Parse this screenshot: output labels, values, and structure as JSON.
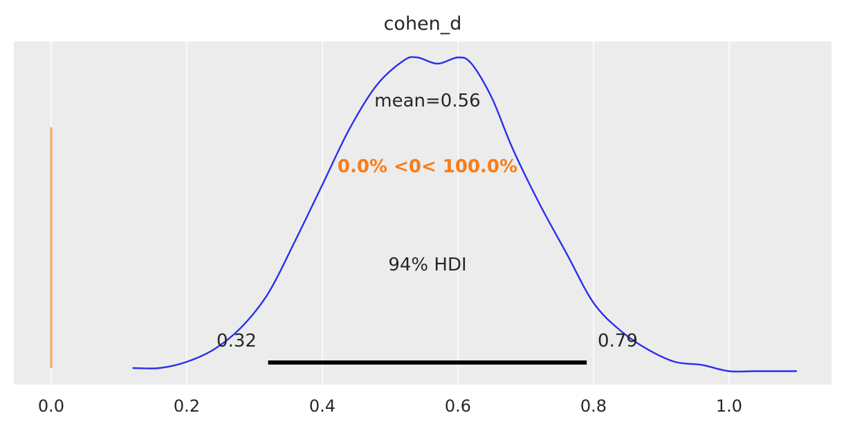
{
  "chart_data": {
    "type": "area",
    "title": "cohen_d",
    "xlabel": "",
    "ylabel": "",
    "xlim": [
      -0.06,
      1.15
    ],
    "grid": true,
    "background_color": "#ececec",
    "curve_color": "#2a2eec",
    "ref_color": "#fa7c17",
    "hdi_color": "#000000",
    "x_ticks": [
      0.0,
      0.2,
      0.4,
      0.6,
      0.8,
      1.0
    ],
    "x_tick_labels": [
      "0.0",
      "0.2",
      "0.4",
      "0.6",
      "0.8",
      "1.0"
    ],
    "density": {
      "x": [
        0.12,
        0.16,
        0.2,
        0.24,
        0.28,
        0.32,
        0.36,
        0.4,
        0.44,
        0.48,
        0.52,
        0.54,
        0.57,
        0.6,
        0.62,
        0.65,
        0.68,
        0.72,
        0.76,
        0.8,
        0.84,
        0.88,
        0.92,
        0.96,
        1.0,
        1.04,
        1.1
      ],
      "y": [
        0.0,
        0.0,
        0.02,
        0.06,
        0.13,
        0.24,
        0.41,
        0.59,
        0.77,
        0.91,
        0.99,
        1.0,
        0.98,
        1.0,
        0.98,
        0.87,
        0.71,
        0.53,
        0.37,
        0.21,
        0.12,
        0.06,
        0.02,
        0.01,
        -0.01,
        -0.01,
        -0.01
      ]
    },
    "mean_label": "mean=0.56",
    "ref_value": 0.0,
    "ref_label": "0.0% <0< 100.0%",
    "hdi": {
      "low": 0.32,
      "high": 0.79,
      "low_label": "0.32",
      "high_label": "0.79",
      "label": "94% HDI"
    }
  }
}
